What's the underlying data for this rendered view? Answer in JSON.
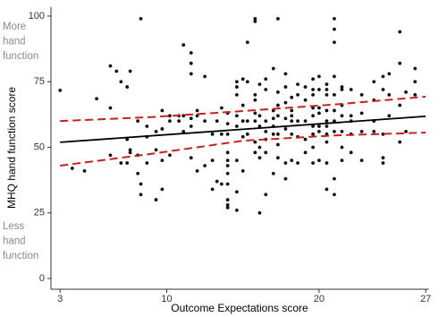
{
  "chart_data": {
    "type": "scatter",
    "x_label": "Outcome Expectations score",
    "y_label": "MHQ hand function score",
    "annotations": [
      [
        "More",
        "hand",
        "function"
      ],
      [
        "Less",
        "hand",
        "function"
      ]
    ],
    "xlim": [
      2.4,
      27.2
    ],
    "ylim": [
      -4.1,
      103.5
    ],
    "xticks": [
      3,
      10,
      20,
      27
    ],
    "yticks": [
      0,
      25,
      50,
      75,
      100
    ],
    "grid": false,
    "series": [
      {
        "kind": "points",
        "color": "#111111",
        "x": [
          3,
          3.8,
          4.6,
          5.4,
          6.3,
          6.3,
          6.3,
          6.7,
          7.0,
          7.0,
          7.4,
          7.4,
          7.4,
          7.6,
          7.6,
          7.6,
          8.1,
          8.1,
          8.1,
          8.3,
          8.3,
          8.3,
          8.7,
          8.7,
          8.7,
          9.3,
          9.3,
          9.3,
          9.7,
          9.7,
          9.7,
          9.7,
          10.2,
          10.2,
          10.2,
          10.8,
          10.8,
          11.1,
          11.1,
          11.1,
          11.6,
          11.6,
          11.6,
          11.6,
          11.6,
          11.6,
          12.0,
          12.0,
          12.0,
          12.5,
          12.5,
          12.5,
          13.0,
          13.0,
          13.0,
          13.3,
          13.3,
          13.6,
          13.6,
          13.6,
          14.0,
          14.0,
          14.0,
          14.0,
          14.0,
          14.0,
          14.0,
          14.0,
          14.0,
          14.0,
          14.0,
          14.6,
          14.6,
          14.6,
          14.6,
          14.6,
          14.6,
          14.6,
          14.6,
          15.0,
          15.0,
          15.0,
          15.0,
          15.0,
          15.3,
          15.3,
          15.3,
          15.3,
          15.8,
          15.8,
          15.8,
          15.8,
          15.8,
          15.8,
          15.8,
          15.8,
          16.1,
          16.1,
          16.1,
          16.1,
          16.1,
          16.1,
          16.5,
          16.5,
          16.5,
          16.5,
          16.5,
          16.5,
          16.5,
          17.0,
          17.0,
          17.0,
          17.0,
          17.0,
          17.0,
          17.3,
          17.3,
          17.3,
          17.3,
          17.3,
          17.3,
          17.3,
          17.8,
          17.8,
          17.8,
          17.8,
          17.8,
          17.8,
          17.8,
          18.2,
          18.2,
          18.2,
          18.2,
          18.2,
          18.2,
          18.6,
          18.6,
          18.6,
          18.6,
          18.6,
          19.1,
          19.1,
          19.1,
          19.1,
          19.1,
          19.6,
          19.6,
          19.6,
          19.6,
          19.6,
          19.6,
          19.6,
          19.6,
          19.6,
          20.0,
          20.0,
          20.0,
          20.0,
          20.0,
          20.0,
          20.0,
          20.5,
          20.5,
          20.5,
          20.5,
          20.5,
          20.5,
          20.5,
          20.5,
          20.5,
          20.5,
          21.0,
          21.0,
          21.0,
          21.0,
          21.0,
          21.0,
          21.0,
          21.0,
          21.0,
          21.0,
          21.5,
          21.5,
          21.5,
          21.5,
          21.5,
          21.5,
          21.5,
          22.1,
          22.1,
          22.1,
          22.1,
          22.1,
          22.8,
          22.8,
          22.8,
          22.8,
          23.6,
          23.6,
          23.6,
          23.6,
          24.2,
          24.2,
          24.2,
          24.2,
          24.2,
          24.6,
          24.6,
          24.6,
          25.3,
          25.3,
          25.3,
          25.3,
          25.7,
          25.7,
          26.3,
          26.3,
          26.3
        ],
        "values": [
          71.7,
          42,
          41,
          68.5,
          81,
          65,
          47,
          79,
          75,
          44,
          73,
          53,
          44,
          79,
          49,
          48,
          60,
          47,
          40,
          99,
          32,
          36,
          58,
          54,
          44,
          56,
          49,
          30,
          57,
          64,
          34,
          45,
          47,
          60,
          62,
          62,
          60,
          89,
          62,
          56,
          82,
          86,
          78,
          61,
          58,
          46,
          64,
          62,
          41,
          77,
          60,
          43,
          55,
          45,
          34,
          60,
          37,
          65,
          55,
          36,
          63,
          59,
          55,
          48,
          45,
          43,
          40,
          36,
          30,
          28,
          27,
          75,
          73,
          70,
          62,
          58,
          45,
          33,
          26,
          76,
          66,
          60,
          54,
          41,
          90,
          75,
          60,
          55,
          99,
          98,
          70,
          68,
          63,
          60,
          52,
          48,
          74,
          62,
          58,
          50,
          46,
          25,
          76,
          72,
          60,
          56,
          53,
          48,
          32,
          80,
          64,
          61,
          58,
          55,
          40,
          99,
          71,
          66,
          62,
          55,
          51,
          46,
          78,
          73,
          67,
          61,
          57,
          44,
          38,
          69,
          64,
          62,
          60,
          55,
          45,
          74,
          70,
          60,
          54,
          44,
          73,
          68,
          60,
          53,
          48,
          76,
          72,
          70,
          65,
          62,
          58,
          55,
          50,
          44,
          77,
          72,
          65,
          63,
          58,
          56,
          45,
          74,
          72,
          70,
          64,
          60,
          58,
          55,
          52,
          44,
          34,
          99,
          95,
          90,
          77,
          70,
          64,
          60,
          56,
          38,
          32,
          73,
          72,
          66,
          62,
          56,
          50,
          45,
          72,
          62,
          60,
          55,
          48,
          70,
          63,
          56,
          45,
          75,
          68,
          60,
          56,
          77,
          72,
          55,
          46,
          44,
          78,
          70,
          62,
          94,
          82,
          66,
          52,
          71,
          56,
          80,
          75,
          70
        ]
      },
      {
        "kind": "line",
        "color": "#000000",
        "dashed": false,
        "x": [
          3,
          27
        ],
        "values": [
          51.9,
          61.8
        ]
      },
      {
        "kind": "line",
        "color": "#cc1f1f",
        "dashed": true,
        "x": [
          3,
          9,
          15,
          21,
          27
        ],
        "values": [
          60,
          61.5,
          63.8,
          66.3,
          69.3
        ]
      },
      {
        "kind": "line",
        "color": "#cc1f1f",
        "dashed": true,
        "x": [
          3,
          9,
          15,
          21,
          27
        ],
        "values": [
          43,
          47.5,
          52.5,
          54.5,
          55.6
        ]
      }
    ]
  }
}
